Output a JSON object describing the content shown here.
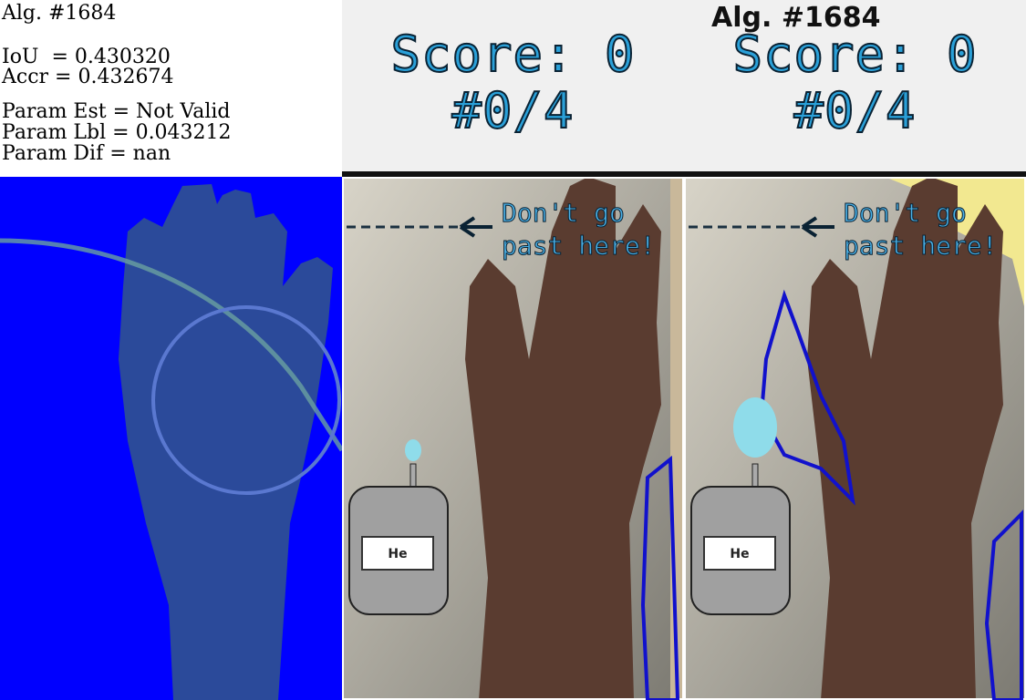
{
  "info": {
    "alg": "Alg. #1684",
    "iou": "IoU  = 0.430320",
    "accr": "Accr = 0.432674",
    "param_est": "Param Est = Not Valid",
    "param_lbl": "Param Lbl = 0.043212",
    "param_dif": "Param Dif = nan"
  },
  "banner": {
    "alg": "Alg. #1684",
    "left_score": "Score: 0",
    "left_count": "#0/4",
    "right_score": "Score: 0",
    "right_count": "#0/4"
  },
  "game": {
    "warning_line1": "Don't go",
    "warning_line2": "past here!",
    "tank_label": "He"
  },
  "colors": {
    "mask_bg": "#0000ff",
    "hand_mask": "#2b4a9a",
    "score_text": "#2aa0d8",
    "balloon": "#8fdcea",
    "contour": "#1111cc"
  }
}
